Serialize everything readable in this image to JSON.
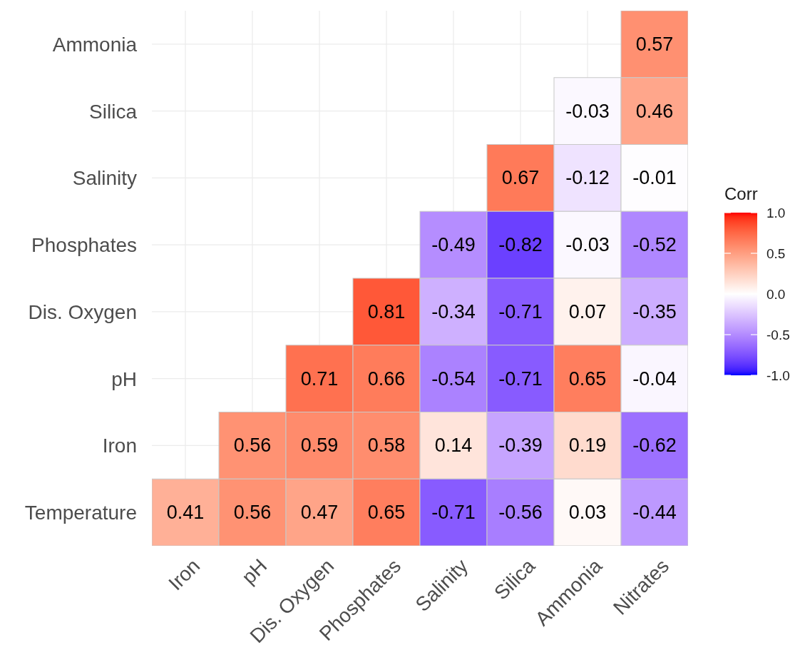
{
  "chart_data": {
    "type": "heatmap",
    "clabel": "Corr",
    "categories": [
      "Iron",
      "pH",
      "Dis. Oxygen",
      "Phosphates",
      "Salinity",
      "Silica",
      "Ammonia",
      "Nitrates"
    ],
    "y_categories": [
      "Ammonia",
      "Silica",
      "Salinity",
      "Phosphates",
      "Dis. Oxygen",
      "pH",
      "Iron",
      "Temperature"
    ],
    "cells": [
      [
        null,
        null,
        null,
        null,
        null,
        null,
        null,
        0.57
      ],
      [
        null,
        null,
        null,
        null,
        null,
        null,
        -0.03,
        0.46
      ],
      [
        null,
        null,
        null,
        null,
        null,
        0.67,
        -0.12,
        -0.01
      ],
      [
        null,
        null,
        null,
        null,
        -0.49,
        -0.82,
        -0.03,
        -0.52
      ],
      [
        null,
        null,
        null,
        0.81,
        -0.34,
        -0.71,
        0.07,
        -0.35
      ],
      [
        null,
        null,
        0.71,
        0.66,
        -0.54,
        -0.71,
        0.65,
        -0.04
      ],
      [
        null,
        0.56,
        0.59,
        0.58,
        0.14,
        -0.39,
        0.19,
        -0.62
      ],
      [
        0.41,
        0.56,
        0.47,
        0.65,
        -0.71,
        -0.56,
        0.03,
        -0.44
      ]
    ],
    "clim": [
      -1,
      1
    ],
    "cticks": [
      {
        "value": -1,
        "label": "-1.0"
      },
      {
        "value": -0.5,
        "label": "-0.5"
      },
      {
        "value": 0,
        "label": "0.0"
      },
      0.5,
      {
        "value": 1,
        "label": "1.0"
      }
    ],
    "data_labels": true,
    "grid": true
  }
}
